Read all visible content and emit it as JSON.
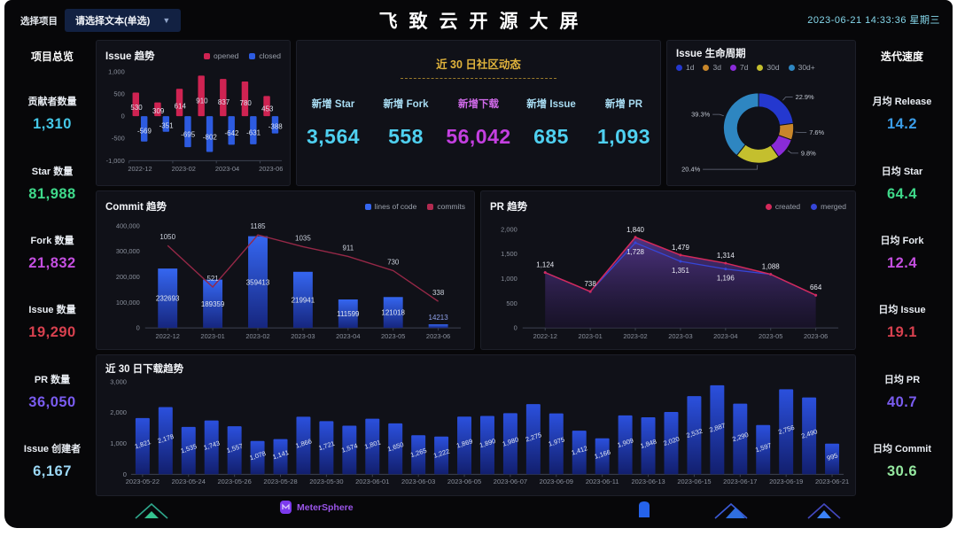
{
  "header": {
    "select_label": "选择项目",
    "select_value": "请选择文本(单选)",
    "title": "飞致云开源大屏",
    "timestamp": "2023-06-21 14:33:36 星期三"
  },
  "left_sidebar": {
    "title": "项目总览",
    "stats": [
      {
        "label": "贡献者数量",
        "value": "1,310",
        "color": "#45c8e8"
      },
      {
        "label": "Star 数量",
        "value": "81,988",
        "color": "#3fd98a"
      },
      {
        "label": "Fork 数量",
        "value": "21,832",
        "color": "#c44fe0"
      },
      {
        "label": "Issue 数量",
        "value": "19,290",
        "color": "#d8414f"
      },
      {
        "label": "PR 数量",
        "value": "36,050",
        "color": "#7a5cf0"
      },
      {
        "label": "Issue 创建者",
        "value": "6,167",
        "color": "#9bd7f5"
      }
    ]
  },
  "right_sidebar": {
    "title": "迭代速度",
    "stats": [
      {
        "label": "月均 Release",
        "value": "14.2",
        "color": "#3b9de8"
      },
      {
        "label": "日均 Star",
        "value": "64.4",
        "color": "#3fd98a"
      },
      {
        "label": "日均 Fork",
        "value": "12.4",
        "color": "#c44fe0"
      },
      {
        "label": "日均 Issue",
        "value": "19.1",
        "color": "#d8414f"
      },
      {
        "label": "日均 PR",
        "value": "40.7",
        "color": "#7a5cf0"
      },
      {
        "label": "日均 Commit",
        "value": "30.6",
        "color": "#95e8a0"
      }
    ]
  },
  "community": {
    "title": "近 30 日社区动态",
    "items": [
      {
        "label": "新增 Star",
        "value": "3,564",
        "label_color": "#a8dcf2",
        "value_color": "#4fd0f0"
      },
      {
        "label": "新增 Fork",
        "value": "558",
        "label_color": "#a8dcf2",
        "value_color": "#4fd0f0"
      },
      {
        "label": "新增下载",
        "value": "56,042",
        "label_color": "#cf6ae8",
        "value_color": "#c43fe0"
      },
      {
        "label": "新增 Issue",
        "value": "685",
        "label_color": "#a8dcf2",
        "value_color": "#4fd0f0"
      },
      {
        "label": "新增 PR",
        "value": "1,093",
        "label_color": "#a8dcf2",
        "value_color": "#4fd0f0"
      }
    ]
  },
  "footer": {
    "metersphere_label": "MeterSphere"
  },
  "chart_data": [
    {
      "id": "issue_trend",
      "type": "bar",
      "title": "Issue 趋势",
      "categories": [
        "2022-12",
        "2023-01",
        "2023-02",
        "2023-03",
        "2023-04",
        "2023-05",
        "2023-06"
      ],
      "xticks_shown": [
        "2022-12",
        "2023-02",
        "2023-04",
        "2023-06"
      ],
      "ylim": [
        -1000,
        1000
      ],
      "yticks": [
        1000,
        500,
        0,
        -500,
        -1000
      ],
      "legend_position": "top-right",
      "series": [
        {
          "name": "opened",
          "color": "#cf2352",
          "values": [
            530,
            309,
            614,
            910,
            837,
            780,
            453
          ]
        },
        {
          "name": "closed",
          "color": "#2d5be0",
          "values": [
            -569,
            -351,
            -695,
            -802,
            -642,
            -631,
            -388
          ]
        }
      ]
    },
    {
      "id": "issue_lifecycle",
      "type": "pie",
      "title": "Issue 生命周期",
      "legend_position": "top-left",
      "slices": [
        {
          "label": "1d",
          "pct": 22.9,
          "color": "#2438cf"
        },
        {
          "label": "3d",
          "pct": 7.6,
          "color": "#c8862a"
        },
        {
          "label": "7d",
          "pct": 9.8,
          "color": "#8a2bd8"
        },
        {
          "label": "30d",
          "pct": 20.4,
          "color": "#c4bf2e"
        },
        {
          "label": "30d+",
          "pct": 39.3,
          "color": "#2e86c1"
        }
      ]
    },
    {
      "id": "commit_trend",
      "type": "bar+line",
      "title": "Commit 趋势",
      "categories": [
        "2022-12",
        "2023-01",
        "2023-02",
        "2023-03",
        "2023-04",
        "2023-05",
        "2023-06"
      ],
      "ylim": [
        0,
        400000
      ],
      "yticks": [
        0,
        100000,
        200000,
        300000,
        400000
      ],
      "legend_position": "top-right",
      "series": [
        {
          "name": "lines of code",
          "type": "bar",
          "color": "#3566f0",
          "values": [
            232693,
            189359,
            359413,
            219941,
            111599,
            121018,
            14213
          ]
        },
        {
          "name": "commits",
          "type": "line",
          "color": "#b22a50",
          "values": [
            1050,
            521,
            1185,
            1035,
            911,
            730,
            338
          ]
        }
      ]
    },
    {
      "id": "pr_trend",
      "type": "area",
      "title": "PR 趋势",
      "categories": [
        "2022-12",
        "2023-01",
        "2023-02",
        "2023-03",
        "2023-04",
        "2023-05",
        "2023-06"
      ],
      "ylim": [
        0,
        2000
      ],
      "yticks": [
        0,
        500,
        1000,
        1500,
        2000
      ],
      "legend_position": "top-right",
      "series": [
        {
          "name": "created",
          "color": "#d4295a",
          "values": [
            1124,
            738,
            1840,
            1479,
            1314,
            1088,
            664
          ],
          "labeled_indices": [
            0,
            1,
            2,
            3,
            4,
            5,
            6
          ]
        },
        {
          "name": "merged",
          "color": "#3646d8",
          "values": [
            1124,
            738,
            1728,
            1351,
            1196,
            1088,
            664
          ],
          "labeled_indices": [
            2,
            3,
            4
          ]
        }
      ]
    },
    {
      "id": "downloads",
      "type": "bar",
      "title": "近 30 日下载趋势",
      "categories": [
        "2023-05-22",
        "2023-05-23",
        "2023-05-24",
        "2023-05-25",
        "2023-05-26",
        "2023-05-27",
        "2023-05-28",
        "2023-05-29",
        "2023-05-30",
        "2023-05-31",
        "2023-06-01",
        "2023-06-02",
        "2023-06-03",
        "2023-06-04",
        "2023-06-05",
        "2023-06-06",
        "2023-06-07",
        "2023-06-08",
        "2023-06-09",
        "2023-06-10",
        "2023-06-11",
        "2023-06-12",
        "2023-06-13",
        "2023-06-14",
        "2023-06-15",
        "2023-06-16",
        "2023-06-17",
        "2023-06-18",
        "2023-06-19",
        "2023-06-20",
        "2023-06-21"
      ],
      "values": [
        1821,
        2178,
        1535,
        1743,
        1557,
        1078,
        1141,
        1866,
        1721,
        1574,
        1801,
        1650,
        1265,
        1222,
        1869,
        1890,
        1980,
        2275,
        1975,
        1412,
        1166,
        1909,
        1848,
        2020,
        2532,
        2887,
        2290,
        1597,
        2756,
        2490,
        995
      ],
      "ylim": [
        0,
        3000
      ],
      "yticks": [
        0,
        1000,
        2000,
        3000
      ],
      "bar_color": "#2b50dd"
    }
  ]
}
